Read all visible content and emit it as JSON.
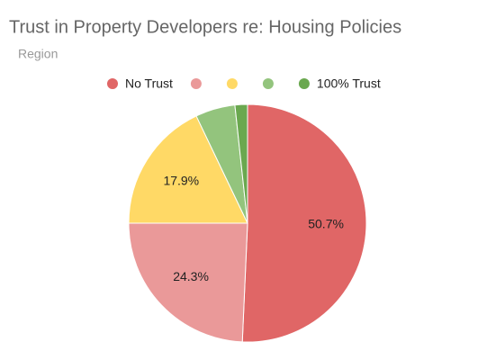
{
  "chart_data": {
    "type": "pie",
    "title": "Trust in Property Developers re: Housing Policies",
    "subtitle": "Region",
    "categories": [
      "No Trust",
      null,
      null,
      null,
      "100% Trust"
    ],
    "values": [
      50.7,
      24.3,
      17.9,
      5.4,
      1.7
    ],
    "value_labels": [
      "50.7%",
      "24.3%",
      "17.9%",
      null,
      null
    ],
    "colors": [
      "#e06666",
      "#ea9999",
      "#ffd966",
      "#93c47d",
      "#6aa84f"
    ],
    "legend": "top"
  }
}
